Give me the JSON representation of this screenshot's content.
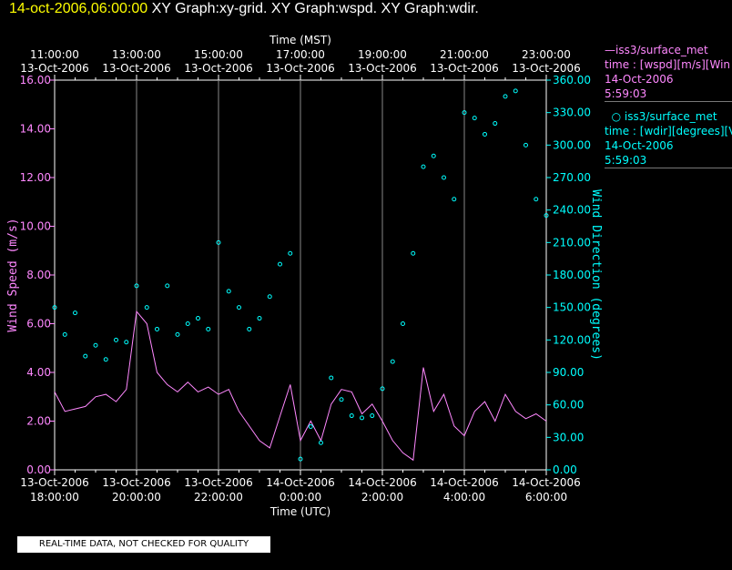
{
  "header": {
    "timestamp": "14-oct-2006,06:00:00",
    "graphs": "XY Graph:xy-grid.  XY Graph:wspd.  XY Graph:wdir.",
    "timestamp_color": "#ffff00"
  },
  "legend": {
    "wspd": {
      "name": "iss3/surface_met",
      "field": "time : [wspd][m/s][Win",
      "date": "14-Oct-2006",
      "time": "5:59:03",
      "color": "#ff88ff"
    },
    "wdir": {
      "name": "iss3/surface_met",
      "field": "time : [wdir][degrees][V",
      "date": "14-Oct-2006",
      "time": "5:59:03",
      "color": "#00ffff"
    }
  },
  "footer_note": "REAL-TIME DATA, NOT CHECKED FOR QUALITY",
  "chart_data": {
    "type": "line",
    "x_unit": "UTC hours since 13-Oct-2006 18:00:00",
    "top_axis": {
      "title": "Time (MST)",
      "ticks": [
        {
          "t": 0,
          "time": "11:00:00",
          "date": "13-Oct-2006"
        },
        {
          "t": 2,
          "time": "13:00:00",
          "date": "13-Oct-2006"
        },
        {
          "t": 4,
          "time": "15:00:00",
          "date": "13-Oct-2006"
        },
        {
          "t": 6,
          "time": "17:00:00",
          "date": "13-Oct-2006"
        },
        {
          "t": 8,
          "time": "19:00:00",
          "date": "13-Oct-2006"
        },
        {
          "t": 10,
          "time": "21:00:00",
          "date": "13-Oct-2006"
        },
        {
          "t": 12,
          "time": "23:00:00",
          "date": "13-Oct-2006"
        }
      ]
    },
    "bottom_axis": {
      "title": "Time (UTC)",
      "ticks": [
        {
          "t": 0,
          "date": "13-Oct-2006",
          "time": "18:00:00"
        },
        {
          "t": 2,
          "date": "13-Oct-2006",
          "time": "20:00:00"
        },
        {
          "t": 4,
          "date": "13-Oct-2006",
          "time": "22:00:00"
        },
        {
          "t": 6,
          "date": "14-Oct-2006",
          "time": "0:00:00"
        },
        {
          "t": 8,
          "date": "14-Oct-2006",
          "time": "2:00:00"
        },
        {
          "t": 10,
          "date": "14-Oct-2006",
          "time": "4:00:00"
        },
        {
          "t": 12,
          "date": "14-Oct-2006",
          "time": "6:00:00"
        }
      ]
    },
    "xlim": [
      0,
      12
    ],
    "left_axis": {
      "title": "Wind Speed (m/s)",
      "ylim": [
        0,
        16
      ],
      "ticks": [
        "0.00",
        "2.00",
        "4.00",
        "6.00",
        "8.00",
        "10.00",
        "12.00",
        "14.00",
        "16.00"
      ],
      "color": "#ff88ff"
    },
    "right_axis": {
      "title": "Wind Direction (degrees)",
      "ylim": [
        0,
        360
      ],
      "ticks": [
        "0.00",
        "30.00",
        "60.00",
        "90.00",
        "120.00",
        "150.00",
        "180.00",
        "210.00",
        "240.00",
        "270.00",
        "300.00",
        "330.00",
        "360.00"
      ],
      "color": "#00ffff"
    },
    "grid": "vertical",
    "series": [
      {
        "name": "iss3/surface_met wspd",
        "type": "line",
        "axis": "left",
        "color": "#ff88ff",
        "x": [
          0,
          0.25,
          0.5,
          0.75,
          1,
          1.25,
          1.5,
          1.75,
          2,
          2.25,
          2.5,
          2.75,
          3,
          3.25,
          3.5,
          3.75,
          4,
          4.25,
          4.5,
          4.75,
          5,
          5.25,
          5.5,
          5.75,
          6,
          6.25,
          6.5,
          6.75,
          7,
          7.25,
          7.5,
          7.75,
          8,
          8.25,
          8.5,
          8.75,
          9,
          9.25,
          9.5,
          9.75,
          10,
          10.25,
          10.5,
          10.75,
          11,
          11.25,
          11.5,
          11.75,
          12
        ],
        "y": [
          3.2,
          2.4,
          2.5,
          2.6,
          3,
          3.1,
          2.8,
          3.3,
          6.5,
          6,
          4,
          3.5,
          3.2,
          3.6,
          3.2,
          3.4,
          3.1,
          3.3,
          2.4,
          1.8,
          1.2,
          0.9,
          2.2,
          3.5,
          1.2,
          2,
          1.2,
          2.7,
          3.3,
          3.2,
          2.3,
          2.7,
          2,
          1.2,
          0.7,
          0.4,
          4.2,
          2.4,
          3.1,
          1.8,
          1.4,
          2.4,
          2.8,
          2,
          3.1,
          2.4,
          2.1,
          2.3,
          2.0
        ]
      },
      {
        "name": "iss3/surface_met wdir",
        "type": "scatter",
        "axis": "right",
        "color": "#00ffff",
        "x": [
          0,
          0.25,
          0.5,
          0.75,
          1,
          1.25,
          1.5,
          1.75,
          2,
          2.25,
          2.5,
          2.75,
          3,
          3.25,
          3.5,
          3.75,
          4,
          4.25,
          4.5,
          4.75,
          5,
          5.25,
          5.5,
          5.75,
          6,
          6.25,
          6.5,
          6.75,
          7,
          7.25,
          7.5,
          7.75,
          8,
          8.25,
          8.5,
          8.75,
          9,
          9.25,
          9.5,
          9.75,
          10,
          10.25,
          10.5,
          10.75,
          11,
          11.25,
          11.5,
          11.75,
          12
        ],
        "y": [
          150,
          125,
          145,
          105,
          115,
          102,
          120,
          118,
          170,
          150,
          130,
          170,
          125,
          135,
          140,
          130,
          210,
          165,
          150,
          130,
          140,
          160,
          190,
          200,
          10,
          40,
          25,
          85,
          65,
          50,
          48,
          50,
          75,
          100,
          135,
          200,
          280,
          290,
          270,
          250,
          330,
          325,
          310,
          320,
          345,
          350,
          300,
          250,
          235
        ]
      }
    ]
  }
}
